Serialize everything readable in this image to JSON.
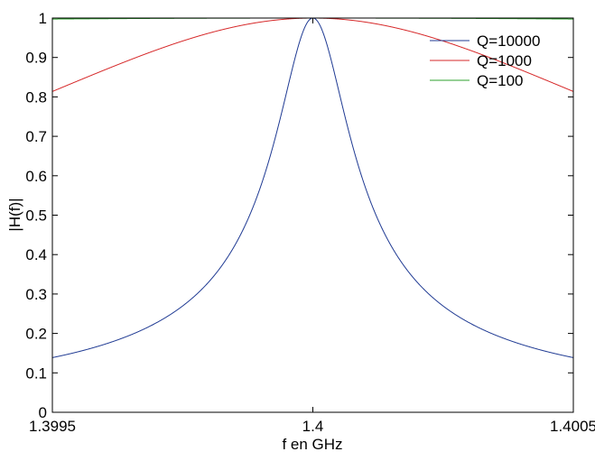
{
  "chart_data": {
    "type": "line",
    "xlabel": "f en GHz",
    "ylabel": "|H(f)|",
    "xlim": [
      1.3995,
      1.4005
    ],
    "ylim": [
      0,
      1
    ],
    "xticks": [
      1.3995,
      1.4,
      1.4005
    ],
    "xtick_labels": [
      "1.3995",
      "1.4",
      "1.4005"
    ],
    "yticks": [
      0,
      0.1,
      0.2,
      0.3,
      0.4,
      0.5,
      0.6,
      0.7,
      0.8,
      0.9,
      1
    ],
    "ytick_labels": [
      "0",
      "0.1",
      "0.2",
      "0.3",
      "0.4",
      "0.5",
      "0.6",
      "0.7",
      "0.8",
      "0.9",
      "1"
    ],
    "grid": false,
    "legend_position": "top-right",
    "center_frequency": 1.4,
    "series": [
      {
        "name": "Q=10000",
        "q": 10000,
        "color": "#1f3a93"
      },
      {
        "name": "Q=1000",
        "q": 1000,
        "color": "#d62728"
      },
      {
        "name": "Q=100",
        "q": 100,
        "color": "#2ca02c"
      }
    ]
  }
}
